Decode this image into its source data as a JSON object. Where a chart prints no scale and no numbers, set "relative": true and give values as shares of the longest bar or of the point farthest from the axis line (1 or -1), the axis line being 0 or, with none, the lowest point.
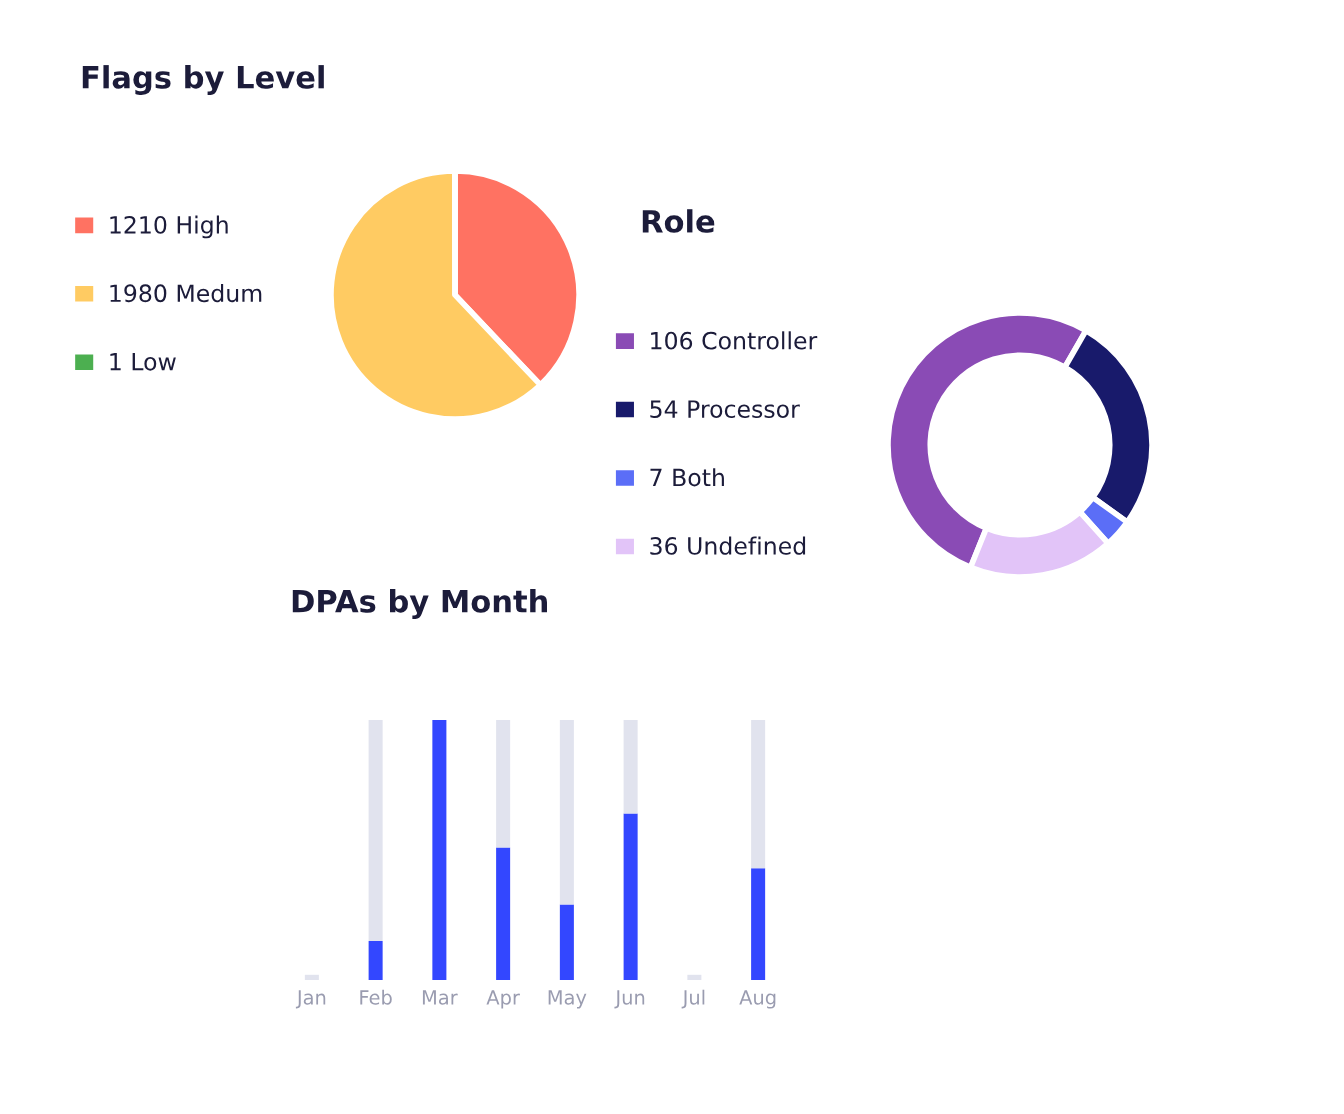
{
  "chart_data": [
    {
      "type": "pie",
      "title": "Flags by Level",
      "categories": [
        "1210 High",
        "1980 Medum",
        "1 Low"
      ],
      "values": [
        1210,
        1980,
        1
      ],
      "colors": [
        "#ff7262",
        "#ffcb62",
        "#4caf50"
      ],
      "legend": "left"
    },
    {
      "type": "donut",
      "title": "Role",
      "categories": [
        "106 Controller",
        "54 Processor",
        "7 Both",
        "36 Undefined"
      ],
      "values": [
        106,
        54,
        7,
        36
      ],
      "colors": [
        "#8a4bb5",
        "#181a6b",
        "#5b6ef7",
        "#e2c4f8"
      ],
      "legend": "left"
    },
    {
      "type": "bar",
      "title": "DPAs by Month",
      "relative": true,
      "stacked": true,
      "categories": [
        "Jan",
        "Feb",
        "Mar",
        "Apr",
        "May",
        "Jun",
        "Jul",
        "Aug"
      ],
      "series": [
        {
          "color": "#3347ff",
          "values": [
            null,
            0.15,
            1,
            0.51,
            0.29,
            0.64,
            null,
            0.43
          ]
        },
        {
          "color": "#e1e3ee",
          "values": [
            0.02,
            0.85,
            null,
            0.49,
            0.71,
            0.36,
            0.02,
            0.57
          ]
        }
      ]
    }
  ]
}
